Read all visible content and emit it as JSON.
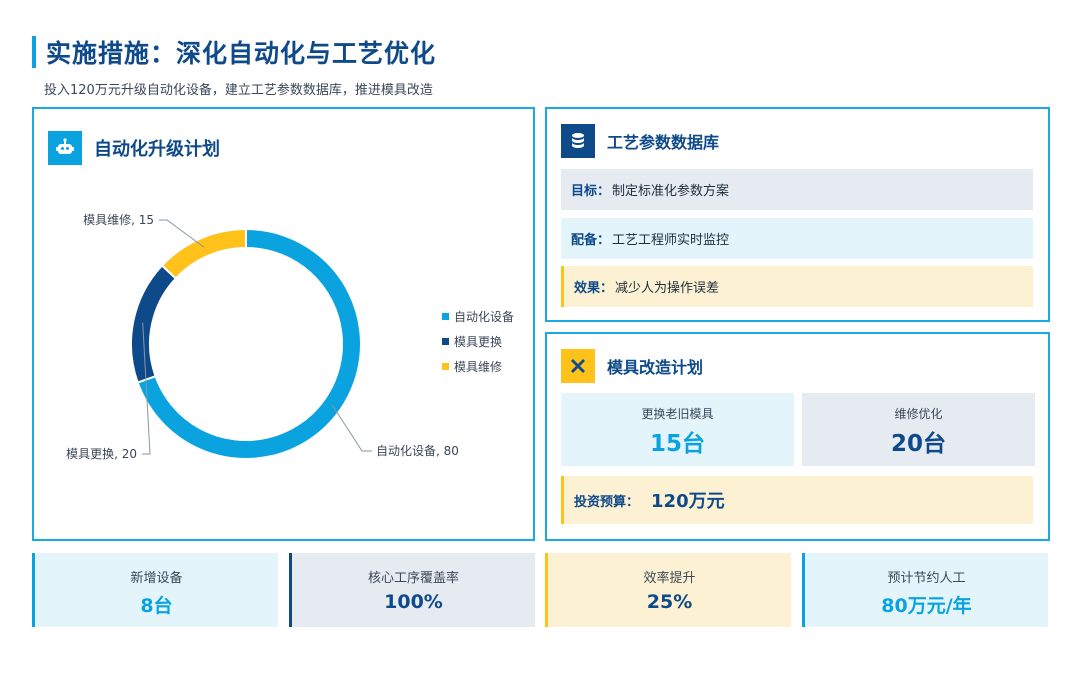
{
  "header": {
    "title": "实施措施：深化自动化与工艺优化",
    "subtitle": "投入120万元升级自动化设备，建立工艺参数数据库，推进模具改造"
  },
  "automation_panel": {
    "title": "自动化升级计划",
    "icon": "robot-icon"
  },
  "chart_data": {
    "type": "pie",
    "donut": true,
    "categories": [
      "自动化设备",
      "模具更换",
      "模具维修"
    ],
    "values": [
      80,
      20,
      15
    ],
    "colors": [
      "#0aa3e0",
      "#0e4a8a",
      "#ffc21a"
    ],
    "data_labels": [
      "自动化设备, 80",
      "模具更换, 20",
      "模具维修, 15"
    ],
    "legend": [
      "自动化设备",
      "模具更换",
      "模具维修"
    ],
    "legend_position": "right"
  },
  "database_panel": {
    "title": "工艺参数数据库",
    "icon": "database-icon",
    "rows": [
      {
        "label": "目标：",
        "text": "制定标准化参数方案"
      },
      {
        "label": "配备：",
        "text": "工艺工程师实时监控"
      },
      {
        "label": "效果：",
        "text": "减少人为操作误差"
      }
    ]
  },
  "mold_panel": {
    "title": "模具改造计划",
    "icon": "tools-icon",
    "cards": [
      {
        "caption": "更换老旧模具",
        "value": "15台"
      },
      {
        "caption": "维修优化",
        "value": "20台"
      }
    ],
    "budget_label": "投资预算：",
    "budget_value": "120万元"
  },
  "stats": [
    {
      "caption": "新增设备",
      "value": "8台",
      "color": "#0aa3e0"
    },
    {
      "caption": "核心工序覆盖率",
      "value": "100%",
      "color": "#0e4a8a"
    },
    {
      "caption": "效率提升",
      "value": "25%",
      "color": "#0e4a8a"
    },
    {
      "caption": "预计节约人工",
      "value": "80万元/年",
      "color": "#0aa3e0"
    }
  ]
}
